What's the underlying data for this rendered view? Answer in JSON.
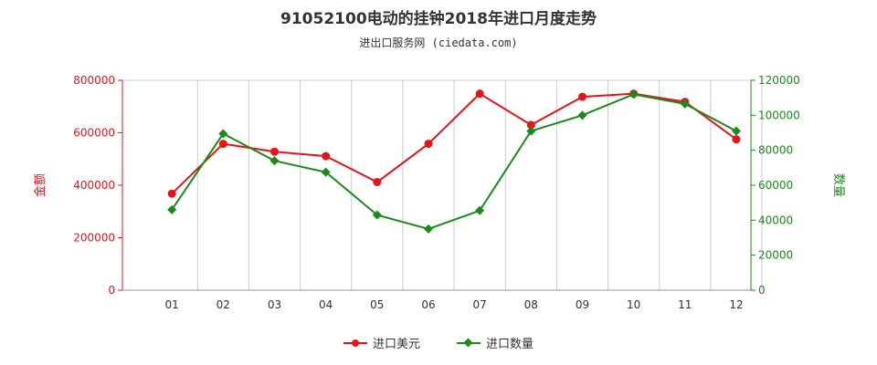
{
  "chart_data": {
    "type": "line",
    "title": "91052100电动的挂钟2018年进口月度走势",
    "subtitle": "进出口服务网 (ciedata.com)",
    "categories": [
      "01",
      "02",
      "03",
      "04",
      "05",
      "06",
      "07",
      "08",
      "09",
      "10",
      "11",
      "12"
    ],
    "ylabel_left": "金额",
    "ylabel_right": "数量",
    "ylim_left": [
      0,
      800000
    ],
    "ylim_right": [
      0,
      120000
    ],
    "yticks_left": [
      "0",
      "200000",
      "400000",
      "600000",
      "800000"
    ],
    "yticks_right": [
      "0",
      "20000",
      "40000",
      "60000",
      "80000",
      "100000",
      "120000"
    ],
    "grid": "vertical",
    "legend_position": "bottom",
    "series": [
      {
        "name": "进口美元",
        "axis": "left",
        "color": "#e8131a",
        "marker": "circle",
        "values": [
          368000,
          558000,
          528000,
          511000,
          412000,
          558000,
          749000,
          630000,
          737000,
          749000,
          718000,
          575000
        ]
      },
      {
        "name": "进口数量",
        "axis": "right",
        "color": "#1a8a1a",
        "marker": "diamond",
        "values": [
          46000,
          89500,
          74000,
          67500,
          43000,
          35000,
          45500,
          91000,
          100000,
          112000,
          106500,
          91000
        ]
      }
    ]
  }
}
